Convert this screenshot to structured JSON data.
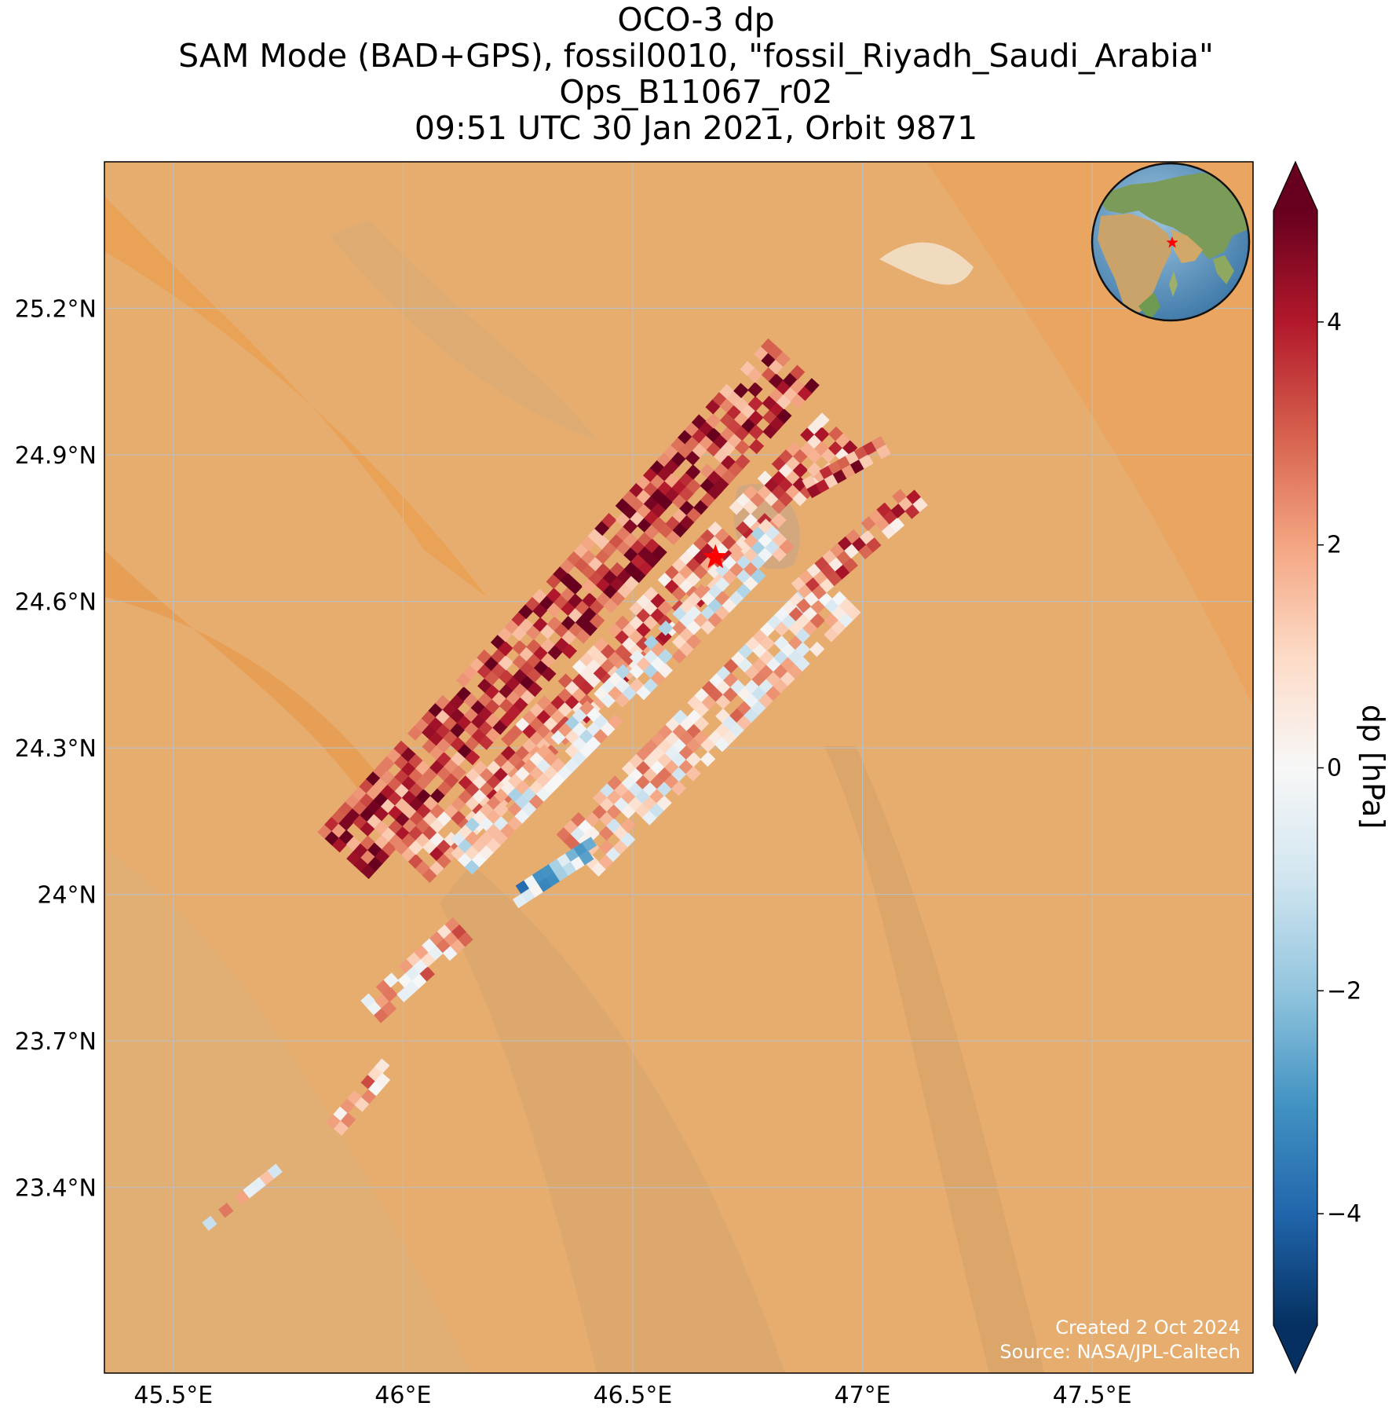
{
  "title_lines": [
    "OCO-3 dp",
    "SAM Mode (BAD+GPS), fossil0010, \"fossil_Riyadh_Saudi_Arabia\"",
    "Ops_B11067_r02",
    "09:51 UTC 30 Jan 2021, Orbit 9871"
  ],
  "map": {
    "lon_range": [
      45.35,
      47.85
    ],
    "lat_range": [
      23.02,
      25.5
    ],
    "x_ticks": [
      {
        "value": 45.5,
        "label": "45.5°E"
      },
      {
        "value": 46.0,
        "label": "46°E"
      },
      {
        "value": 46.5,
        "label": "46.5°E"
      },
      {
        "value": 47.0,
        "label": "47°E"
      },
      {
        "value": 47.5,
        "label": "47.5°E"
      }
    ],
    "y_ticks": [
      {
        "value": 25.2,
        "label": "25.2°N"
      },
      {
        "value": 24.9,
        "label": "24.9°N"
      },
      {
        "value": 24.6,
        "label": "24.6°N"
      },
      {
        "value": 24.3,
        "label": "24.3°N"
      },
      {
        "value": 24.0,
        "label": "24°N"
      },
      {
        "value": 23.7,
        "label": "23.7°N"
      },
      {
        "value": 23.4,
        "label": "23.4°N"
      }
    ],
    "target": {
      "name": "fossil_Riyadh_Saudi_Arabia",
      "lon": 46.68,
      "lat": 24.69
    },
    "gridlines": true,
    "background": "satellite desert imagery",
    "inset": "globe centered on Arabian Peninsula with target star"
  },
  "colorbar": {
    "label": "dp [hPa]",
    "range": [
      -5,
      5
    ],
    "colormap": "RdBu_r",
    "extend": "both",
    "ticks": [
      {
        "value": 4,
        "label": "4"
      },
      {
        "value": 2,
        "label": "2"
      },
      {
        "value": 0,
        "label": "0"
      },
      {
        "value": -2,
        "label": "−2"
      },
      {
        "value": -4,
        "label": "−4"
      }
    ]
  },
  "credit": {
    "line1": "Created 2 Oct 2024",
    "line2": "Source: NASA/JPL-Caltech"
  },
  "swaths": [
    {
      "lon_start": 45.87,
      "lat_start": 24.08,
      "lon_end": 46.85,
      "lat_end": 25.09,
      "width_deg": 0.14,
      "mean": 3.4
    },
    {
      "lon_start": 46.02,
      "lat_start": 24.06,
      "lon_end": 46.95,
      "lat_end": 24.95,
      "width_deg": 0.1,
      "mean": 2.2
    },
    {
      "lon_start": 46.12,
      "lat_start": 24.07,
      "lon_end": 46.82,
      "lat_end": 24.74,
      "width_deg": 0.08,
      "mean": 0.4
    },
    {
      "lon_start": 46.38,
      "lat_start": 24.08,
      "lon_end": 46.95,
      "lat_end": 24.62,
      "width_deg": 0.12,
      "mean": 0.9
    },
    {
      "lon_start": 46.85,
      "lat_start": 24.6,
      "lon_end": 47.12,
      "lat_end": 24.82,
      "width_deg": 0.06,
      "mean": 2.3
    },
    {
      "lon_start": 46.88,
      "lat_start": 24.83,
      "lon_end": 47.05,
      "lat_end": 24.92,
      "width_deg": 0.04,
      "mean": 3.0
    },
    {
      "lon_start": 46.24,
      "lat_start": 23.99,
      "lon_end": 46.42,
      "lat_end": 24.1,
      "width_deg": 0.05,
      "mean": -1.8
    },
    {
      "lon_start": 45.93,
      "lat_start": 23.76,
      "lon_end": 46.13,
      "lat_end": 23.93,
      "width_deg": 0.07,
      "mean": 1.4
    },
    {
      "lon_start": 45.85,
      "lat_start": 23.52,
      "lon_end": 45.97,
      "lat_end": 23.65,
      "width_deg": 0.05,
      "mean": 2.1
    },
    {
      "lon_start": 45.57,
      "lat_start": 23.32,
      "lon_end": 45.73,
      "lat_end": 23.44,
      "width_deg": 0.03,
      "mean": 0.6
    }
  ]
}
